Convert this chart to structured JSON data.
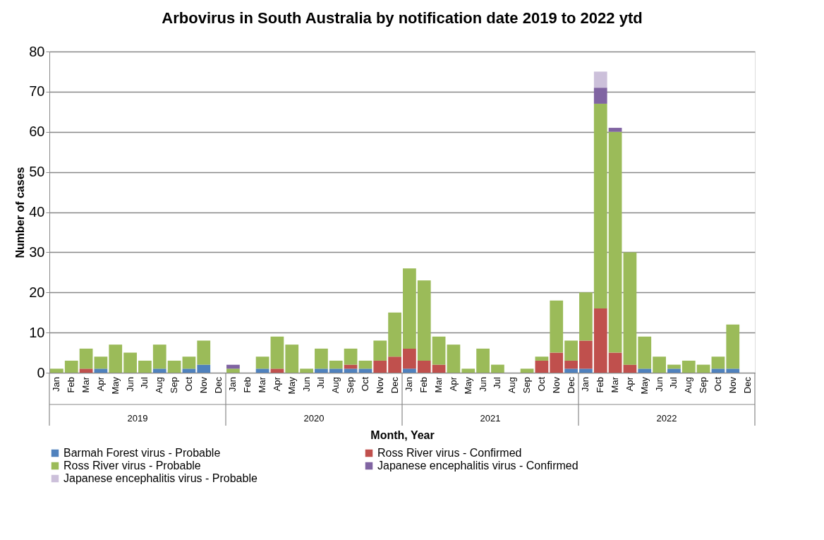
{
  "chart_data": {
    "type": "bar",
    "title": "Arbovirus in South Australia by notification date 2019 to 2022 ytd",
    "xlabel": "Month, Year",
    "ylabel": "Number of cases",
    "categories": [
      "Jan",
      "Feb",
      "Mar",
      "Apr",
      "May",
      "Jun",
      "Jul",
      "Aug",
      "Sep",
      "Oct",
      "Nov",
      "Dec",
      "Jan",
      "Feb",
      "Mar",
      "Apr",
      "May",
      "Jun",
      "Jul",
      "Aug",
      "Sep",
      "Oct",
      "Nov",
      "Dec",
      "Jan",
      "Feb",
      "Mar",
      "Apr",
      "May",
      "Jun",
      "Jul",
      "Aug",
      "Sep",
      "Oct",
      "Nov",
      "Dec",
      "Jan",
      "Feb",
      "Mar",
      "Apr",
      "May",
      "Jun",
      "Jul",
      "Aug",
      "Sep",
      "Oct",
      "Nov",
      "Dec"
    ],
    "annotations": [
      "2019",
      "2020",
      "2021",
      "2022"
    ],
    "stacked": true,
    "ylim": [
      0,
      80
    ],
    "yticks": [
      0,
      10,
      20,
      30,
      40,
      50,
      60,
      70,
      80
    ],
    "grid": "y",
    "legend": "bottom",
    "series": [
      {
        "name": "Barmah Forest virus  - Probable",
        "color": "#4f81bd",
        "values": [
          0,
          0,
          0,
          1,
          0,
          0,
          0,
          1,
          0,
          1,
          2,
          0,
          0,
          0,
          1,
          0,
          0,
          0,
          1,
          1,
          1,
          1,
          0,
          0,
          1,
          0,
          0,
          0,
          0,
          0,
          0,
          0,
          0,
          0,
          0,
          1,
          1,
          0,
          0,
          0,
          1,
          0,
          1,
          0,
          0,
          1,
          1,
          0
        ]
      },
      {
        "name": "Ross River virus - Confirmed",
        "color": "#c0504d",
        "values": [
          0,
          0,
          1,
          0,
          0,
          0,
          0,
          0,
          0,
          0,
          0,
          0,
          0,
          0,
          0,
          1,
          0,
          0,
          0,
          0,
          1,
          0,
          3,
          4,
          5,
          3,
          2,
          0,
          0,
          0,
          0,
          0,
          0,
          3,
          5,
          2,
          7,
          16,
          5,
          2,
          0,
          0,
          0,
          0,
          0,
          0,
          0,
          0
        ]
      },
      {
        "name": "Ross River virus - Probable",
        "color": "#9bbb59",
        "values": [
          1,
          3,
          5,
          3,
          7,
          5,
          3,
          6,
          3,
          3,
          6,
          0,
          1,
          0,
          3,
          8,
          7,
          1,
          5,
          2,
          4,
          2,
          5,
          11,
          20,
          20,
          7,
          7,
          1,
          6,
          2,
          0,
          1,
          1,
          13,
          5,
          12,
          51,
          55,
          28,
          8,
          4,
          1,
          3,
          2,
          3,
          11,
          0
        ]
      },
      {
        "name": "Japanese encephalitis virus - Confirmed",
        "color": "#8064a2",
        "values": [
          0,
          0,
          0,
          0,
          0,
          0,
          0,
          0,
          0,
          0,
          0,
          0,
          1,
          0,
          0,
          0,
          0,
          0,
          0,
          0,
          0,
          0,
          0,
          0,
          0,
          0,
          0,
          0,
          0,
          0,
          0,
          0,
          0,
          0,
          0,
          0,
          0,
          4,
          1,
          0,
          0,
          0,
          0,
          0,
          0,
          0,
          0,
          0
        ]
      },
      {
        "name": "Japanese encephalitis virus - Probable",
        "color": "#ccc0da",
        "values": [
          0,
          0,
          0,
          0,
          0,
          0,
          0,
          0,
          0,
          0,
          0,
          0,
          0,
          0,
          0,
          0,
          0,
          0,
          0,
          0,
          0,
          0,
          0,
          0,
          0,
          0,
          0,
          0,
          0,
          0,
          0,
          0,
          0,
          0,
          0,
          0,
          0,
          4,
          0,
          0,
          0,
          0,
          0,
          0,
          0,
          0,
          0,
          0
        ]
      }
    ]
  }
}
